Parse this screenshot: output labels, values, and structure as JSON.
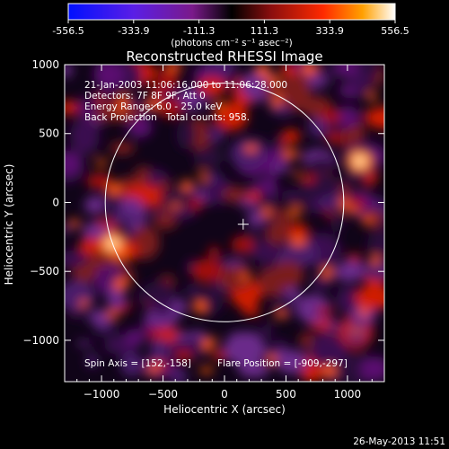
{
  "colorbar": {
    "ticks": [
      "-556.5",
      "-333.9",
      "-111.3",
      "111.3",
      "333.9",
      "556.5"
    ],
    "units": "(photons cm⁻² s⁻¹ asec⁻²)"
  },
  "chart_data": {
    "type": "heatmap",
    "title": "Reconstructed RHESSI Image",
    "xlabel": "Heliocentric X (arcsec)",
    "ylabel": "Heliocentric Y (arcsec)",
    "xlim": [
      -1300,
      1300
    ],
    "ylim": [
      -1300,
      1000
    ],
    "xticks": [
      -1000,
      -500,
      0,
      500,
      1000
    ],
    "yticks": [
      1000,
      500,
      0,
      -500,
      -1000
    ],
    "xtick_labels": [
      "−1000",
      "−500",
      "0",
      "500",
      "1000"
    ],
    "ytick_labels": [
      "1000",
      "500",
      "0",
      "−500",
      "−1000"
    ],
    "value_range": [
      -556.5,
      556.5
    ],
    "annotations": [
      "21-Jan-2003 11:06:16.000 to 11:06:28.000",
      "Detectors: 7F 8F 9F, Att 0",
      "Energy Range: 6.0 - 25.0 keV",
      "Back Projection   Total counts: 958."
    ],
    "footer_left": "Spin Axis = [152,-158]",
    "footer_right": "Flare Position = [-909,-297]",
    "solar_disk": {
      "center": [
        0,
        0
      ],
      "radius_arcsec": 970
    },
    "marker": {
      "x": 152,
      "y": -158
    },
    "bright_sources": [
      {
        "x": -909,
        "y": -297
      },
      {
        "x": 1100,
        "y": 300
      }
    ]
  },
  "timestamp": "26-May-2013 11:51"
}
